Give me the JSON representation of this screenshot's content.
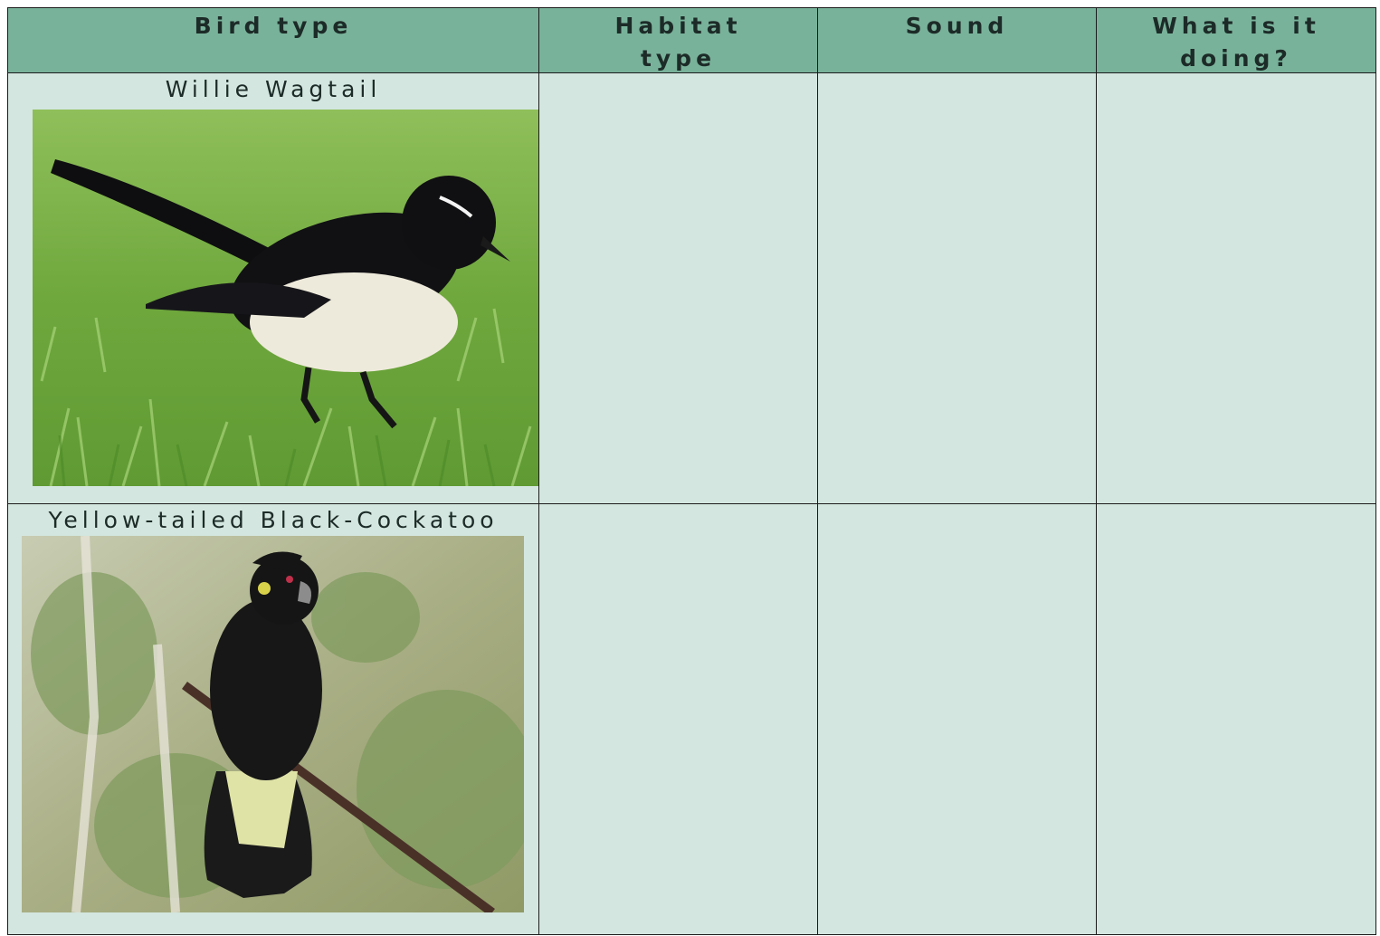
{
  "table": {
    "header": [
      "Bird type",
      "Habitat type",
      "Sound",
      "What is it doing?"
    ],
    "rows": [
      [
        "Willie Wagtail"
      ],
      [
        "Yellow-tailed Black-Cockatoo"
      ]
    ]
  }
}
